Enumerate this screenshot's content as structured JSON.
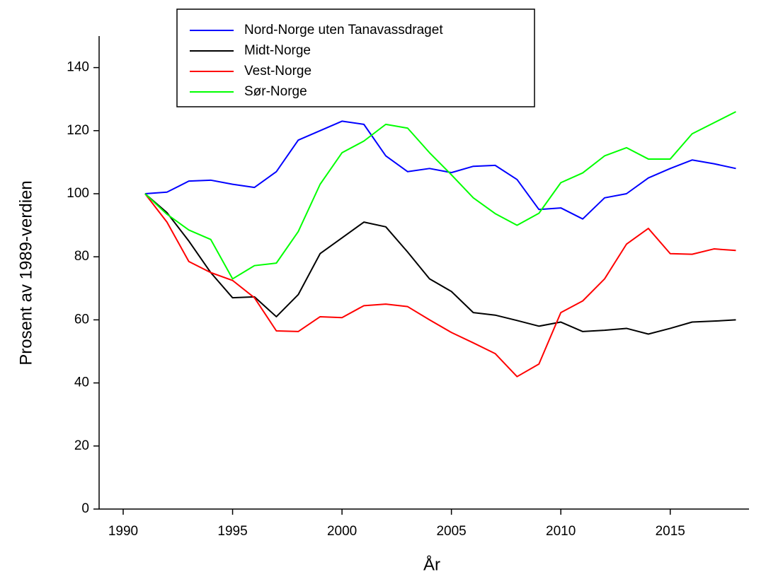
{
  "chart_data": {
    "type": "line",
    "xlabel": "År",
    "ylabel": "Prosent av 1989-verdien",
    "x": [
      1991,
      1992,
      1993,
      1994,
      1995,
      1996,
      1997,
      1998,
      1999,
      2000,
      2001,
      2002,
      2003,
      2004,
      2005,
      2006,
      2007,
      2008,
      2009,
      2010,
      2011,
      2012,
      2013,
      2014,
      2015,
      2016,
      2017,
      2018
    ],
    "series": [
      {
        "name": "Nord-Norge uten Tanavassdraget",
        "color": "#0000ff",
        "values": [
          100,
          100.5,
          104,
          104.3,
          103,
          102,
          107,
          117,
          120,
          123,
          122,
          112,
          107,
          108,
          106.7,
          108.7,
          109,
          104.5,
          95,
          95.5,
          92,
          98.7,
          100,
          105,
          108,
          110.7,
          109.5,
          108
        ]
      },
      {
        "name": "Midt-Norge",
        "color": "#000000",
        "values": [
          100,
          94,
          85,
          75,
          67,
          67.3,
          61,
          68,
          81,
          86,
          91,
          89.5,
          81.5,
          73,
          69,
          62.3,
          61.5,
          59.8,
          58,
          59.3,
          56.3,
          56.7,
          57.3,
          55.5,
          57.3,
          59.3,
          59.6,
          60
        ]
      },
      {
        "name": "Vest-Norge",
        "color": "#ff0000",
        "values": [
          100,
          91,
          78.5,
          75,
          72.5,
          67,
          56.5,
          56.3,
          61,
          60.7,
          64.5,
          65,
          64.2,
          60,
          56,
          52.7,
          49.3,
          42,
          46,
          62.3,
          66,
          73,
          84,
          89,
          81,
          80.8,
          82.5,
          82
        ]
      },
      {
        "name": "Sør-Norge",
        "color": "#00ff00",
        "values": [
          100,
          93.5,
          88.5,
          85.5,
          73,
          77.2,
          78,
          88,
          103,
          113,
          116.7,
          122,
          120.8,
          113,
          106,
          98.7,
          93.7,
          90,
          93.8,
          103.5,
          106.6,
          112,
          114.6,
          111,
          111,
          119,
          122.5,
          126
        ]
      }
    ],
    "xlim": [
      1988.9,
      2018.6
    ],
    "xticks": [
      1990,
      1995,
      2000,
      2005,
      2010,
      2015
    ],
    "ylim": [
      0,
      150
    ],
    "yticks": [
      0,
      20,
      40,
      60,
      80,
      100,
      120,
      140
    ],
    "legend": "top"
  }
}
